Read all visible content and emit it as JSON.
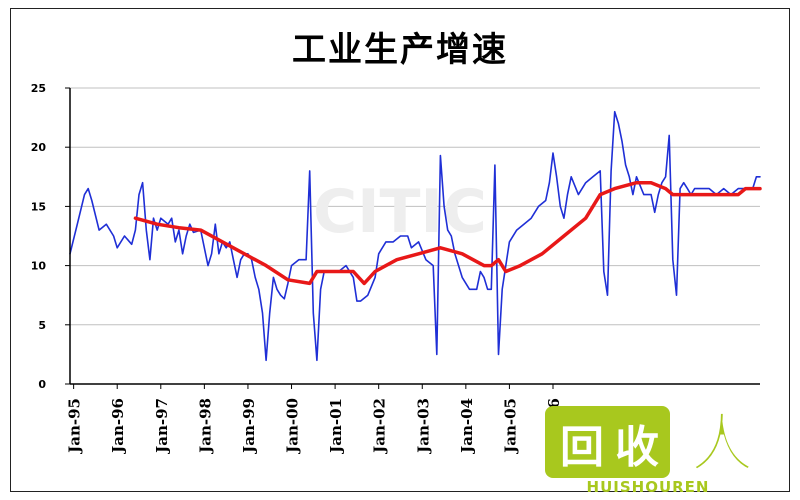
{
  "chart_data": {
    "type": "line",
    "title": "工业生产增速",
    "xlabel": "",
    "ylabel": "",
    "ylim": [
      0,
      25
    ],
    "yticks": [
      "0",
      "5",
      "10",
      "15",
      "20",
      "25"
    ],
    "xtick_labels": [
      "Jan-95",
      "Jan-96",
      "Jan-97",
      "Jan-98",
      "Jan-99",
      "Jan-00",
      "Jan-01",
      "Jan-02",
      "Jan-03",
      "Jan-04",
      "Jan-05",
      "Jan-06"
    ],
    "grid": "horizontal",
    "series": [
      {
        "color": "#1f2fd6",
        "points": [
          [
            0,
            11
          ],
          [
            2,
            13.5
          ],
          [
            4,
            16
          ],
          [
            5,
            16.5
          ],
          [
            6,
            15.5
          ],
          [
            8,
            13
          ],
          [
            10,
            13.5
          ],
          [
            12,
            12.5
          ],
          [
            13,
            11.5
          ],
          [
            15,
            12.5
          ],
          [
            17,
            11.8
          ],
          [
            18,
            13
          ],
          [
            19,
            16
          ],
          [
            20,
            17
          ],
          [
            21,
            13
          ],
          [
            22,
            10.5
          ],
          [
            23,
            14
          ],
          [
            24,
            13
          ],
          [
            25,
            14
          ],
          [
            27,
            13.5
          ],
          [
            28,
            14
          ],
          [
            29,
            12
          ],
          [
            30,
            13
          ],
          [
            31,
            11
          ],
          [
            32,
            12.5
          ],
          [
            33,
            13.5
          ],
          [
            34,
            12.8
          ],
          [
            36,
            13
          ],
          [
            38,
            10
          ],
          [
            39,
            11
          ],
          [
            40,
            13.5
          ],
          [
            41,
            11
          ],
          [
            42,
            12
          ],
          [
            43,
            11.5
          ],
          [
            44,
            12
          ],
          [
            45,
            10.5
          ],
          [
            46,
            9
          ],
          [
            47,
            10.5
          ],
          [
            48,
            11
          ],
          [
            49,
            11
          ],
          [
            50,
            10.5
          ],
          [
            51,
            9
          ],
          [
            52,
            8
          ],
          [
            53,
            6
          ],
          [
            54,
            2
          ],
          [
            55,
            6
          ],
          [
            56,
            9
          ],
          [
            57,
            8
          ],
          [
            58,
            7.5
          ],
          [
            59,
            7.2
          ],
          [
            60,
            8.5
          ],
          [
            61,
            10
          ],
          [
            63,
            10.5
          ],
          [
            65,
            10.5
          ],
          [
            66,
            18
          ],
          [
            67,
            6
          ],
          [
            68,
            2
          ],
          [
            69,
            8
          ],
          [
            70,
            9.5
          ],
          [
            72,
            9.5
          ],
          [
            74,
            9.5
          ],
          [
            76,
            10
          ],
          [
            78,
            9
          ],
          [
            79,
            7
          ],
          [
            80,
            7
          ],
          [
            82,
            7.5
          ],
          [
            84,
            9
          ],
          [
            85,
            11
          ],
          [
            87,
            12
          ],
          [
            89,
            12
          ],
          [
            91,
            12.5
          ],
          [
            93,
            12.5
          ],
          [
            94,
            11.5
          ],
          [
            96,
            12
          ],
          [
            98,
            10.5
          ],
          [
            100,
            10
          ],
          [
            101,
            2.5
          ],
          [
            102,
            19.3
          ],
          [
            103,
            15
          ],
          [
            104,
            13
          ],
          [
            105,
            12.5
          ],
          [
            106,
            11
          ],
          [
            108,
            9
          ],
          [
            110,
            8
          ],
          [
            112,
            8
          ],
          [
            113,
            9.5
          ],
          [
            114,
            9
          ],
          [
            115,
            8
          ],
          [
            116,
            8
          ],
          [
            117,
            18.5
          ],
          [
            118,
            2.5
          ],
          [
            119,
            8
          ],
          [
            120,
            10
          ],
          [
            121,
            12
          ],
          [
            123,
            13
          ],
          [
            125,
            13.5
          ],
          [
            127,
            14
          ],
          [
            129,
            15
          ],
          [
            131,
            15.5
          ],
          [
            132,
            17
          ],
          [
            133,
            19.5
          ],
          [
            134,
            17.5
          ],
          [
            135,
            15
          ],
          [
            136,
            14
          ],
          [
            137,
            16
          ],
          [
            138,
            17.5
          ],
          [
            140,
            16
          ],
          [
            142,
            17
          ],
          [
            144,
            17.5
          ],
          [
            146,
            18
          ],
          [
            147,
            9.5
          ],
          [
            148,
            7.5
          ],
          [
            149,
            18
          ],
          [
            150,
            23
          ],
          [
            151,
            22
          ],
          [
            152,
            20.5
          ],
          [
            153,
            18.5
          ],
          [
            154,
            17.5
          ],
          [
            155,
            16
          ],
          [
            156,
            17.5
          ],
          [
            158,
            16
          ],
          [
            160,
            16
          ],
          [
            161,
            14.5
          ],
          [
            162,
            16
          ],
          [
            163,
            17
          ],
          [
            164,
            17.5
          ],
          [
            165,
            21
          ],
          [
            166,
            10.5
          ],
          [
            167,
            7.5
          ],
          [
            168,
            16.5
          ],
          [
            169,
            17
          ],
          [
            170,
            16.5
          ],
          [
            171,
            16
          ],
          [
            172,
            16.5
          ],
          [
            174,
            16.5
          ],
          [
            176,
            16.5
          ],
          [
            178,
            16
          ],
          [
            180,
            16.5
          ],
          [
            182,
            16
          ],
          [
            184,
            16.5
          ],
          [
            186,
            16.5
          ],
          [
            188,
            16.5
          ],
          [
            189,
            17.5
          ],
          [
            190,
            17.5
          ]
        ]
      },
      {
        "color": "#e81818",
        "points": [
          [
            18,
            14
          ],
          [
            24,
            13.5
          ],
          [
            30,
            13.2
          ],
          [
            36,
            13
          ],
          [
            42,
            12
          ],
          [
            48,
            11
          ],
          [
            54,
            10
          ],
          [
            60,
            8.8
          ],
          [
            66,
            8.5
          ],
          [
            68,
            9.5
          ],
          [
            72,
            9.5
          ],
          [
            78,
            9.5
          ],
          [
            81,
            8.5
          ],
          [
            84,
            9.5
          ],
          [
            90,
            10.5
          ],
          [
            96,
            11
          ],
          [
            102,
            11.5
          ],
          [
            108,
            11
          ],
          [
            114,
            10
          ],
          [
            116,
            10
          ],
          [
            118,
            10.5
          ],
          [
            120,
            9.5
          ],
          [
            124,
            10
          ],
          [
            130,
            11
          ],
          [
            136,
            12.5
          ],
          [
            142,
            14
          ],
          [
            146,
            16
          ],
          [
            150,
            16.5
          ],
          [
            156,
            17
          ],
          [
            160,
            17
          ],
          [
            164,
            16.5
          ],
          [
            166,
            16
          ],
          [
            170,
            16
          ],
          [
            176,
            16
          ],
          [
            180,
            16
          ],
          [
            184,
            16
          ],
          [
            186,
            16.5
          ],
          [
            190,
            16.5
          ]
        ]
      }
    ]
  },
  "watermark": {
    "center_text": "CITIC",
    "logo_chars": "回收人",
    "logo_sub": "HUISHOUREN",
    "colors": {
      "green": "#a8c81e",
      "white": "#ffffff"
    }
  }
}
